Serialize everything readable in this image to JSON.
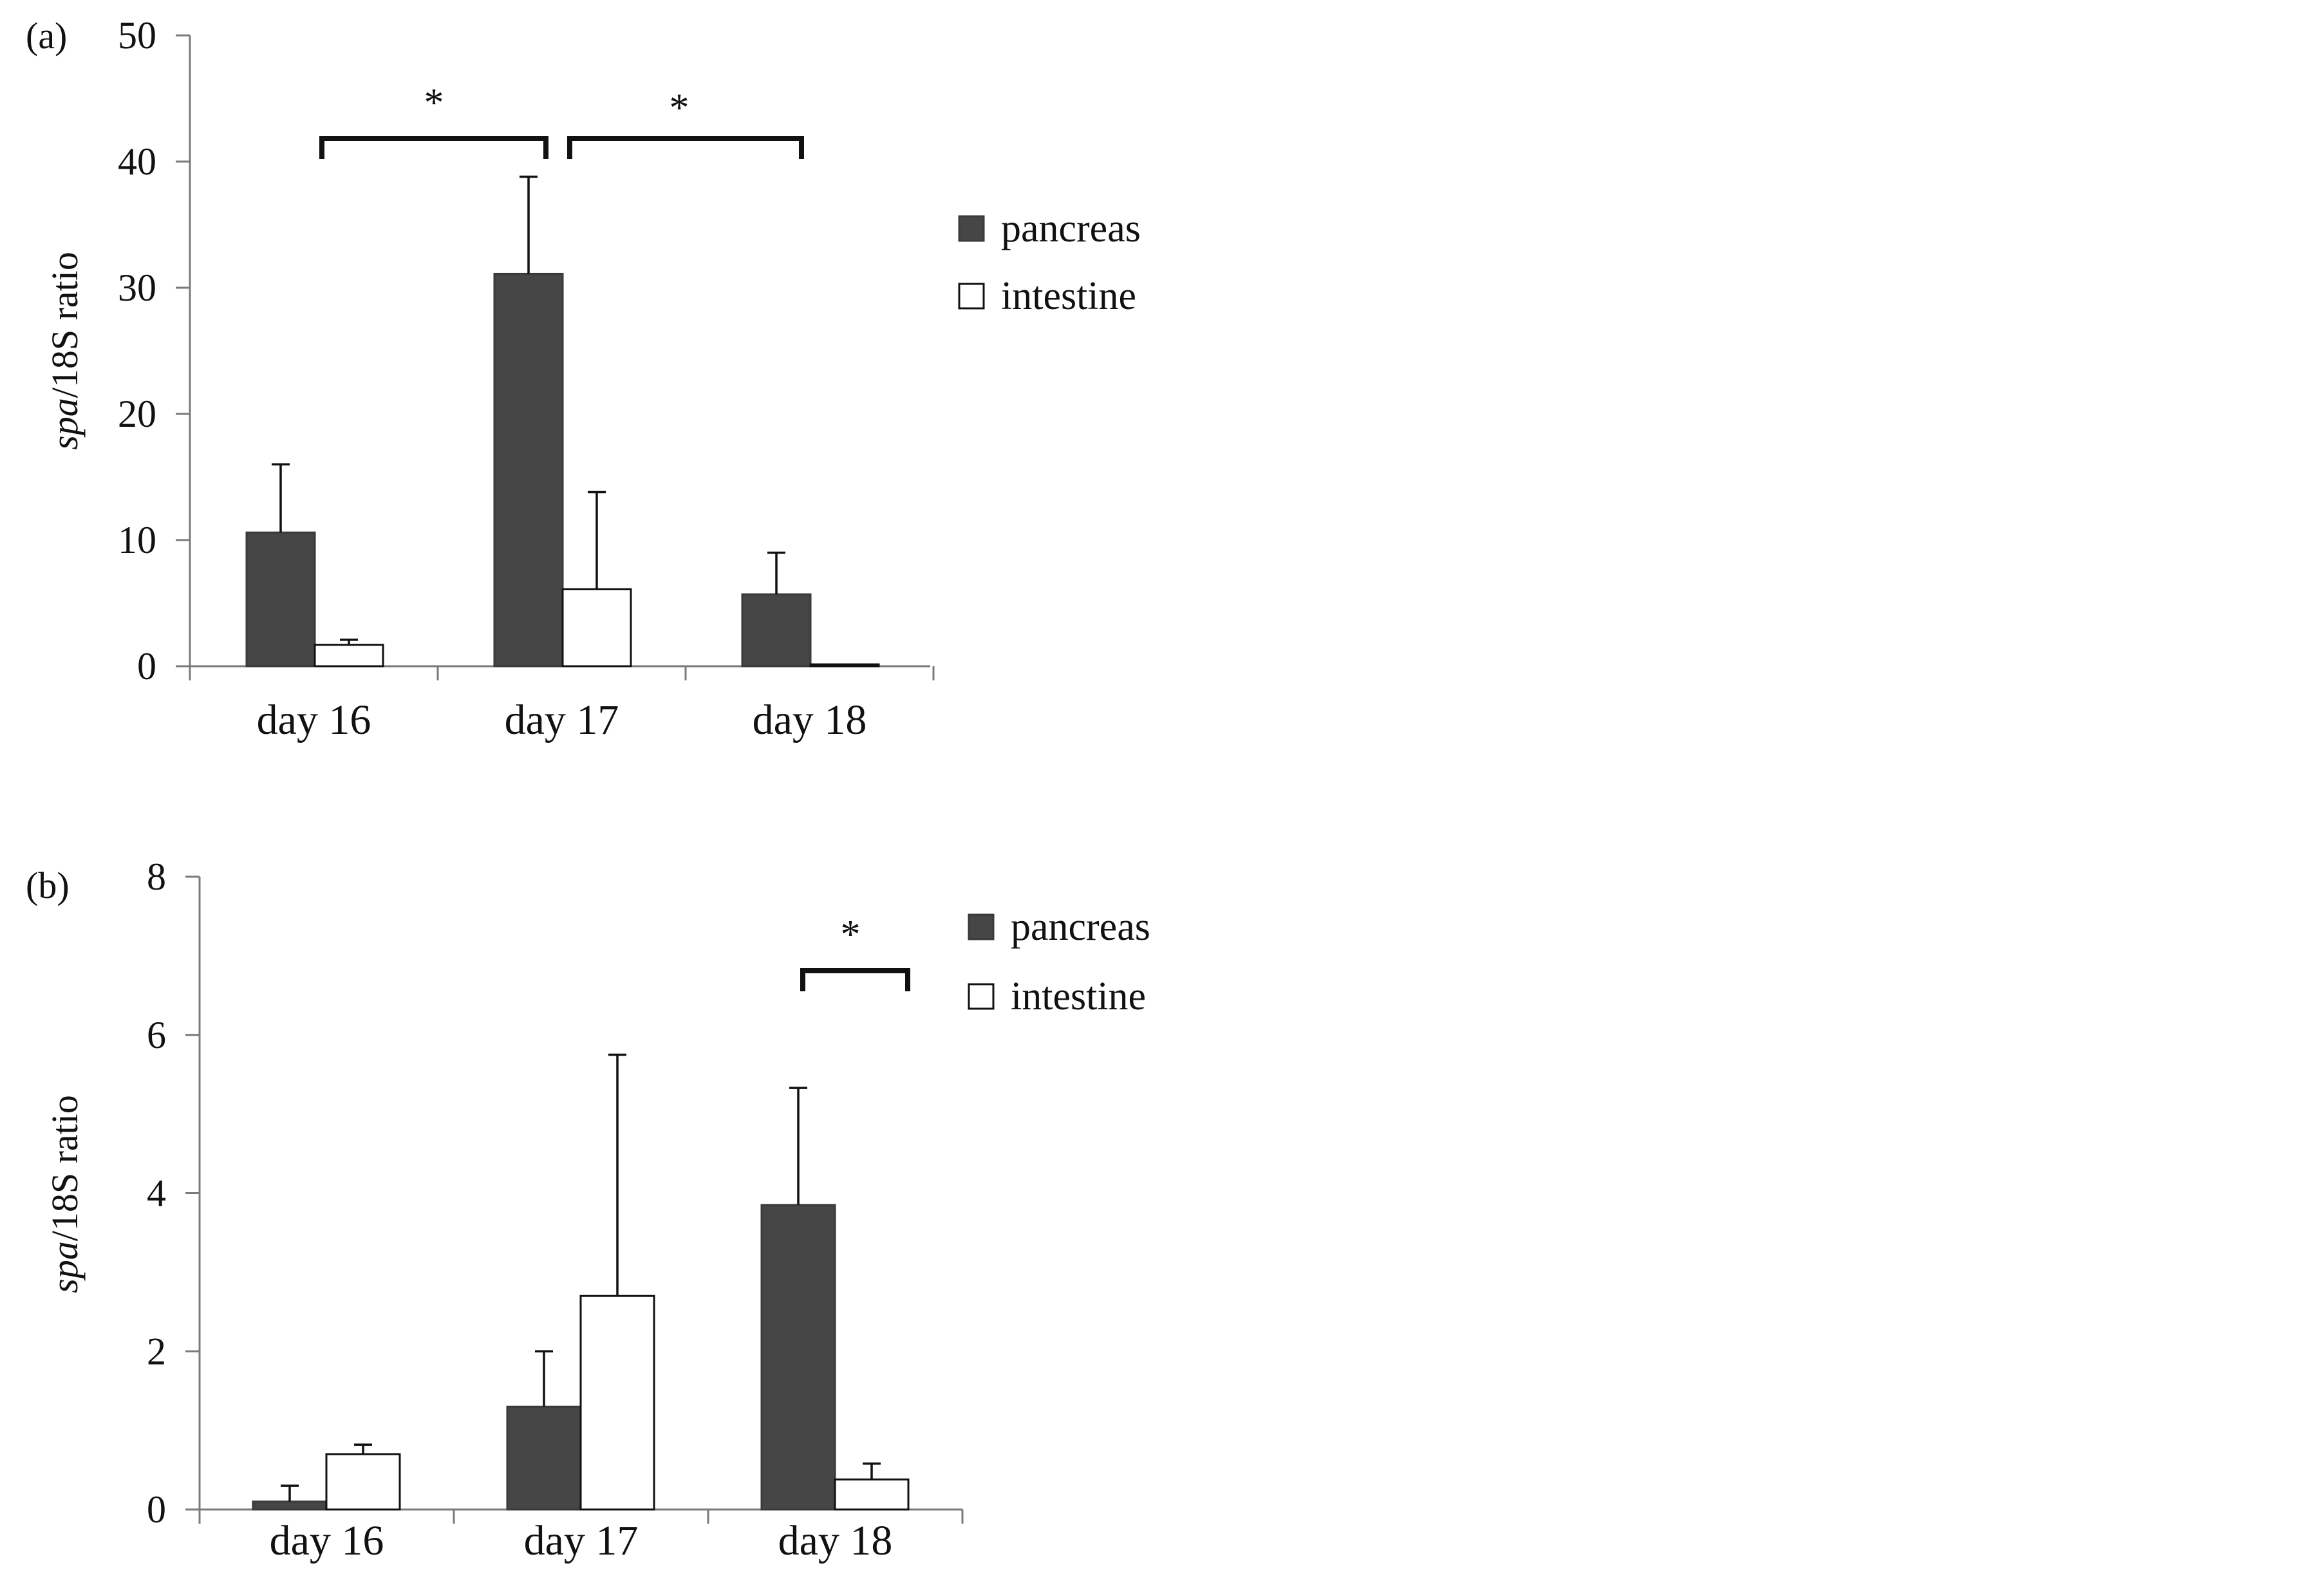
{
  "chart_data": [
    {
      "type": "bar",
      "panel_label": "(a)",
      "ylabel_italic": "spa",
      "ylabel_rest": "/18S ratio",
      "categories": [
        "day 16",
        "day 17",
        "day 18"
      ],
      "ylim": [
        0,
        50
      ],
      "yticks": [
        0,
        10,
        20,
        30,
        40,
        50
      ],
      "series": [
        {
          "name": "pancreas",
          "color": "#464646",
          "values": [
            10.6,
            31.1,
            5.7
          ],
          "errors": [
            5.4,
            7.7,
            3.3
          ]
        },
        {
          "name": "intestine",
          "color": "#ffffff",
          "values": [
            1.7,
            6.1,
            0.15
          ],
          "errors": [
            0.4,
            7.7,
            0.0
          ]
        }
      ],
      "significance": [
        {
          "label": "*",
          "from": "day 16",
          "to": "day 17"
        },
        {
          "label": "*",
          "from": "day 17",
          "to": "day 18"
        }
      ],
      "legend": "right"
    },
    {
      "type": "bar",
      "panel_label": "(b)",
      "ylabel_italic": "spa",
      "ylabel_rest": "/18S ratio",
      "categories": [
        "day 16",
        "day 17",
        "day 18"
      ],
      "ylim": [
        0,
        8
      ],
      "yticks": [
        0,
        2,
        4,
        6,
        8
      ],
      "series": [
        {
          "name": "pancreas",
          "color": "#464646",
          "values": [
            0.1,
            1.3,
            3.85
          ],
          "errors": [
            0.2,
            0.7,
            1.48
          ]
        },
        {
          "name": "intestine",
          "color": "#ffffff",
          "values": [
            0.7,
            2.7,
            0.38
          ],
          "errors": [
            0.12,
            3.05,
            0.2
          ]
        }
      ],
      "significance": [
        {
          "label": "*",
          "from": "day 18",
          "to": "day 18"
        }
      ],
      "legend": "right"
    }
  ]
}
